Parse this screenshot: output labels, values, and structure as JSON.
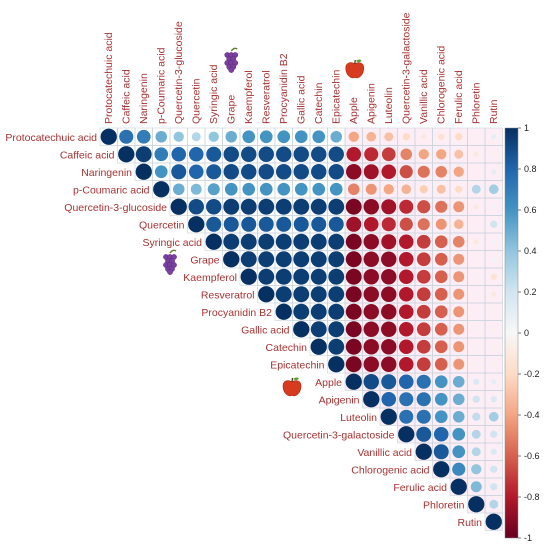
{
  "chart_data": {
    "type": "heatmap",
    "style": "upper-triangular correlation plot (circle size and color = correlation)",
    "variables": [
      "Protocatechuic acid",
      "Caffeic acid",
      "Naringenin",
      "p-Coumaric acid",
      "Quercetin-3-glucoside",
      "Quercetin",
      "Syringic acid",
      "Grape",
      "Kaempferol",
      "Resveratrol",
      "Procyanidin B2",
      "Gallic acid",
      "Catechin",
      "Epicatechin",
      "Apple",
      "Apigenin",
      "Luteolin",
      "Quercetin-3-galactoside",
      "Vanillic acid",
      "Chlorogenic acid",
      "Ferulic acid",
      "Phloretin",
      "Rutin"
    ],
    "marker_icons": {
      "Grape": "grape-icon",
      "Apple": "apple-icon"
    },
    "colorbar": {
      "min": -1,
      "max": 1,
      "ticks": [
        "1",
        "0.8",
        "0.6",
        "0.4",
        "0.2",
        "0",
        "-0.2",
        "-0.4",
        "-0.6",
        "-0.8",
        "-1"
      ],
      "low_color": "#67001f",
      "mid_color": "#f7f7f7",
      "high_color": "#053061"
    },
    "matrix_upper": [
      [
        1,
        0.75,
        0.7,
        0.5,
        0.4,
        0.3,
        0.4,
        0.5,
        0.6,
        0.6,
        0.6,
        0.6,
        0.6,
        0.5,
        -0.4,
        -0.35,
        -0.3,
        -0.2,
        -0.1,
        -0.15,
        -0.2,
        -0.05,
        0.1
      ],
      [
        1,
        0.95,
        0.7,
        0.8,
        0.8,
        0.85,
        0.9,
        0.9,
        0.9,
        0.9,
        0.9,
        0.9,
        0.9,
        -0.8,
        -0.75,
        -0.7,
        -0.5,
        -0.4,
        -0.4,
        -0.3,
        -0.1,
        -0.05
      ],
      [
        1,
        0.6,
        0.85,
        0.8,
        0.85,
        0.9,
        0.9,
        0.9,
        0.9,
        0.9,
        0.9,
        0.9,
        -0.9,
        -0.85,
        -0.8,
        -0.65,
        -0.55,
        -0.5,
        -0.4,
        -0.05,
        0.1
      ],
      [
        1,
        0.5,
        0.45,
        0.55,
        0.6,
        0.6,
        0.6,
        0.6,
        0.6,
        0.6,
        0.6,
        -0.5,
        -0.45,
        -0.4,
        -0.35,
        -0.25,
        -0.3,
        -0.2,
        0.3,
        0.35
      ],
      [
        1,
        0.9,
        0.9,
        0.95,
        0.95,
        0.95,
        0.95,
        0.95,
        0.95,
        0.95,
        -0.95,
        -0.9,
        -0.85,
        -0.75,
        -0.65,
        -0.55,
        -0.45,
        -0.1,
        0.05
      ],
      [
        1,
        0.85,
        0.85,
        0.85,
        0.85,
        0.85,
        0.85,
        0.85,
        0.85,
        -0.85,
        -0.8,
        -0.75,
        -0.65,
        -0.55,
        -0.45,
        -0.35,
        -0.05,
        0.2
      ],
      [
        1,
        0.95,
        0.95,
        0.95,
        0.95,
        0.95,
        0.95,
        0.95,
        -0.95,
        -0.9,
        -0.85,
        -0.8,
        -0.7,
        -0.6,
        -0.5,
        -0.1,
        0.05
      ],
      [
        1,
        0.95,
        0.95,
        0.95,
        0.95,
        0.95,
        0.95,
        -0.95,
        -0.9,
        -0.9,
        -0.8,
        -0.7,
        -0.6,
        -0.45,
        -0.05,
        0.05
      ],
      [
        1,
        0.95,
        0.95,
        0.95,
        0.95,
        0.95,
        -0.95,
        -0.9,
        -0.9,
        -0.8,
        -0.7,
        -0.6,
        -0.45,
        -0.05,
        -0.15
      ],
      [
        1,
        0.95,
        0.95,
        0.95,
        0.95,
        -0.95,
        -0.9,
        -0.9,
        -0.8,
        -0.7,
        -0.6,
        -0.45,
        -0.05,
        -0.1
      ],
      [
        1,
        0.95,
        0.95,
        0.95,
        -0.95,
        -0.9,
        -0.9,
        -0.8,
        -0.7,
        -0.6,
        -0.45,
        -0.05,
        -0.05
      ],
      [
        1,
        0.95,
        0.95,
        -0.95,
        -0.9,
        -0.9,
        -0.8,
        -0.7,
        -0.6,
        -0.45,
        -0.05,
        -0.05
      ],
      [
        1,
        0.95,
        -0.95,
        -0.9,
        -0.9,
        -0.8,
        -0.7,
        -0.6,
        -0.45,
        -0.05,
        -0.05
      ],
      [
        1,
        -0.95,
        -0.9,
        -0.9,
        -0.8,
        -0.7,
        -0.6,
        -0.45,
        -0.05,
        -0.05
      ],
      [
        1,
        0.9,
        0.85,
        0.8,
        0.75,
        0.6,
        0.5,
        0.15,
        0.1
      ],
      [
        1,
        0.8,
        0.75,
        0.75,
        0.6,
        0.5,
        0.2,
        0.15
      ],
      [
        1,
        0.75,
        0.75,
        0.6,
        0.5,
        0.25,
        0.35
      ],
      [
        1,
        0.85,
        0.8,
        0.6,
        0.3,
        0.2
      ],
      [
        1,
        0.85,
        0.6,
        0.3,
        0.15
      ],
      [
        1,
        0.65,
        0.4,
        0.2
      ],
      [
        1,
        0.45,
        0.2
      ],
      [
        1,
        0.3
      ],
      [
        1
      ]
    ]
  }
}
